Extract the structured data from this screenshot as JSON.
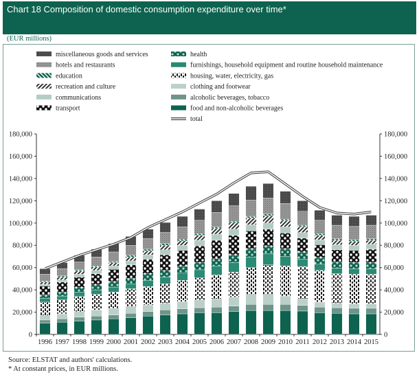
{
  "header": {
    "title": "Chart 18  Composition of domestic consumption expenditure over time*"
  },
  "unit_label": "(EUR millions)",
  "footer": {
    "source": "Source: ELSTAT and authors' calculations.",
    "note": "* At constant prices, in EUR millions."
  },
  "colors": {
    "header_bg": "#0e6350",
    "misc": "#555555",
    "hotels": "#8a8a8a",
    "education": "#0e6350",
    "recreation": "#333333",
    "communications": "#b5ccc5",
    "transport": "#111111",
    "health": "#0e6350",
    "furnishings": "#2a8a74",
    "housing": "#222222",
    "clothing": "#bcd0ca",
    "alcohol": "#6f9489",
    "food": "#0e6350",
    "total_line": "#444444"
  },
  "chart_data": {
    "type": "bar",
    "stacked": true,
    "title": "Composition of domestic consumption expenditure over time*",
    "xlabel": "",
    "ylabel": "EUR millions",
    "ylim": [
      0,
      180000
    ],
    "yticks": [
      0,
      20000,
      40000,
      60000,
      80000,
      100000,
      120000,
      140000,
      160000,
      180000
    ],
    "ytick_labels": [
      "0",
      "20,000",
      "40,000",
      "60,000",
      "80,000",
      "100,000",
      "120,000",
      "140,000",
      "160,000",
      "180,000"
    ],
    "categories": [
      "1996",
      "1997",
      "1998",
      "1999",
      "2000",
      "2001",
      "2002",
      "2003",
      "2004",
      "2005",
      "2006",
      "2007",
      "2008",
      "2009",
      "2010",
      "2011",
      "2012",
      "2013",
      "2014",
      "2015"
    ],
    "legend_left": [
      "miscellaneous goods and services",
      "hotels and restaurants",
      "education",
      "recreation and culture",
      "communications",
      "transport"
    ],
    "legend_right": [
      "health",
      "furnishings, household equipment and routine household maintenance",
      "housing, water, electricity, gas",
      "clothing and footwear",
      "alcoholic beverages, tobacco",
      "food and non-alcoholic beverages",
      "total"
    ],
    "series": [
      {
        "key": "food",
        "name": "food and non-alcoholic beverages",
        "values": [
          10000,
          11000,
          12000,
          13000,
          14000,
          15000,
          16500,
          17500,
          18500,
          19500,
          19500,
          20500,
          21500,
          21500,
          21500,
          21000,
          19500,
          19000,
          18500,
          18500
        ]
      },
      {
        "key": "alcohol",
        "name": "alcoholic beverages, tobacco",
        "values": [
          3000,
          3000,
          3500,
          3500,
          3500,
          4000,
          4000,
          4500,
          4500,
          4500,
          5000,
          5000,
          5500,
          5500,
          5500,
          5000,
          5000,
          5000,
          5000,
          5000
        ]
      },
      {
        "key": "clothing",
        "name": "clothing and footwear",
        "values": [
          4000,
          4500,
          5000,
          5500,
          6000,
          6000,
          6000,
          6000,
          6500,
          7000,
          7500,
          8000,
          9000,
          9000,
          7500,
          6000,
          4500,
          4000,
          4000,
          4000
        ]
      },
      {
        "key": "housing",
        "name": "housing, water, electricity, gas",
        "values": [
          12000,
          12500,
          13500,
          14000,
          14500,
          16000,
          16500,
          17500,
          19000,
          20000,
          21500,
          22500,
          24000,
          26500,
          27000,
          29000,
          28500,
          26500,
          26500,
          26500
        ]
      },
      {
        "key": "furnishings",
        "name": "furnishings, household equipment and routine household maintenance",
        "values": [
          3500,
          3500,
          4000,
          4000,
          4500,
          4500,
          5500,
          6000,
          6500,
          7000,
          8000,
          8500,
          9500,
          10000,
          8500,
          6500,
          5500,
          5000,
          5000,
          5000
        ]
      },
      {
        "key": "health",
        "name": "health",
        "values": [
          3000,
          3500,
          4000,
          4500,
          5000,
          5000,
          6000,
          6000,
          6500,
          6500,
          6500,
          7000,
          7500,
          7000,
          7000,
          6500,
          6000,
          5500,
          5500,
          5500
        ]
      },
      {
        "key": "transport",
        "name": "transport",
        "values": [
          8000,
          9000,
          9500,
          10000,
          11000,
          12000,
          13000,
          14000,
          14000,
          15000,
          16500,
          17500,
          16000,
          15000,
          14000,
          12500,
          11500,
          11000,
          11000,
          12000
        ]
      },
      {
        "key": "communications",
        "name": "communications",
        "values": [
          1500,
          2000,
          2500,
          3000,
          3000,
          3500,
          4000,
          4500,
          4500,
          5000,
          5500,
          5500,
          5500,
          5500,
          5500,
          5000,
          4500,
          4500,
          4500,
          4500
        ]
      },
      {
        "key": "recreation",
        "name": "recreation and culture",
        "values": [
          2000,
          2500,
          3000,
          3000,
          3000,
          3500,
          3500,
          4000,
          4000,
          4500,
          5000,
          5500,
          6000,
          6500,
          5500,
          5000,
          4000,
          4000,
          3500,
          3500
        ]
      },
      {
        "key": "education",
        "name": "education",
        "values": [
          1000,
          1000,
          1000,
          1000,
          1000,
          1500,
          1500,
          1500,
          1500,
          1500,
          1500,
          1500,
          1500,
          1500,
          1500,
          1500,
          1500,
          1500,
          1500,
          1500
        ]
      },
      {
        "key": "hotels",
        "name": "hotels and restaurants",
        "values": [
          6000,
          6500,
          7000,
          8000,
          8500,
          9000,
          9500,
          10000,
          11000,
          12000,
          13000,
          14000,
          14500,
          14500,
          14000,
          12500,
          12000,
          12000,
          12000,
          12000
        ]
      },
      {
        "key": "misc",
        "name": "miscellaneous goods and services",
        "values": [
          5000,
          5500,
          6000,
          7000,
          7500,
          8000,
          8500,
          9000,
          9500,
          10000,
          10500,
          11000,
          12500,
          13000,
          11000,
          9500,
          9000,
          9000,
          9000,
          9000
        ]
      }
    ],
    "total": {
      "name": "total",
      "values": [
        59000,
        65000,
        71000,
        76000,
        81000,
        87000,
        96000,
        103000,
        110000,
        118000,
        126000,
        136000,
        145000,
        146000,
        135000,
        124000,
        114000,
        109000,
        108000,
        110000
      ]
    }
  }
}
